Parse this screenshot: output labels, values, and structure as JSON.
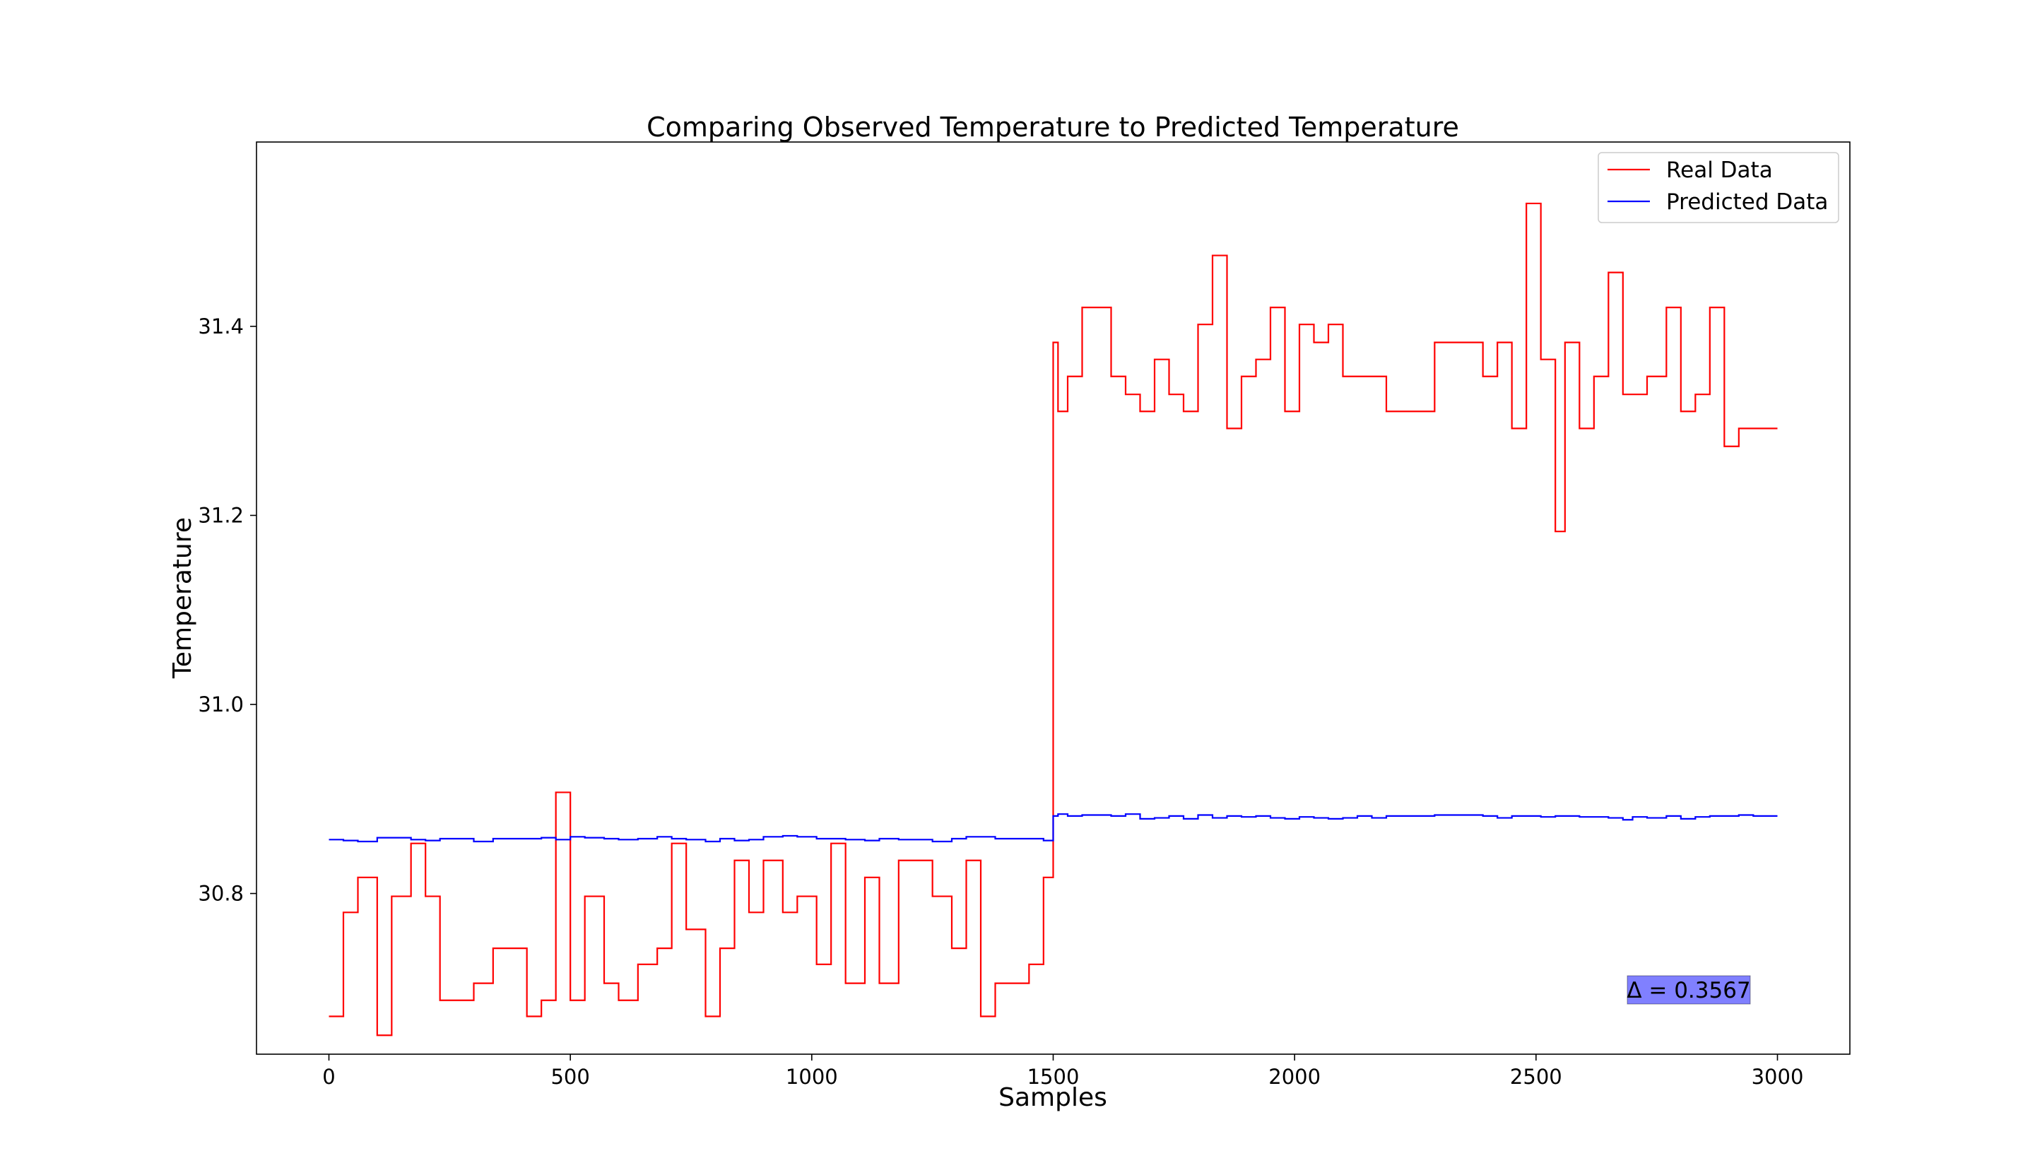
{
  "chart_data": {
    "type": "line",
    "title": "Comparing Observed Temperature to Predicted Temperature",
    "xlabel": "Samples",
    "ylabel": "Temperature",
    "xlim": [
      -150,
      3150
    ],
    "ylim": [
      30.63,
      31.595
    ],
    "xticks": [
      0,
      500,
      1000,
      1500,
      2000,
      2500,
      3000
    ],
    "xtick_labels": [
      "0",
      "500",
      "1000",
      "1500",
      "2000",
      "2500",
      "3000"
    ],
    "yticks": [
      30.8,
      31.0,
      31.2,
      31.4
    ],
    "ytick_labels": [
      "30.8",
      "31.0",
      "31.2",
      "31.4"
    ],
    "grid": false,
    "legend_position": "top-right",
    "annotation": "Δ = 0.3567",
    "annotation_color": "#8080ff",
    "series": [
      {
        "name": "Real Data",
        "color": "#ff0000",
        "step": true,
        "x": [
          0,
          30,
          60,
          100,
          130,
          170,
          200,
          230,
          300,
          340,
          410,
          440,
          470,
          500,
          530,
          570,
          600,
          640,
          680,
          710,
          740,
          780,
          810,
          840,
          870,
          900,
          940,
          970,
          1010,
          1040,
          1070,
          1110,
          1140,
          1180,
          1250,
          1290,
          1320,
          1350,
          1380,
          1450,
          1480,
          1490,
          1500,
          1505,
          1510,
          1520,
          1530,
          1560,
          1620,
          1650,
          1680,
          1710,
          1740,
          1770,
          1800,
          1830,
          1860,
          1890,
          1920,
          1950,
          1980,
          2010,
          2040,
          2070,
          2100,
          2130,
          2160,
          2190,
          2290,
          2390,
          2420,
          2450,
          2480,
          2510,
          2540,
          2560,
          2590,
          2620,
          2650,
          2680,
          2700,
          2730,
          2770,
          2800,
          2830,
          2860,
          2890,
          2920,
          2950,
          2970,
          3000
        ],
        "y": [
          30.67,
          30.78,
          30.817,
          30.65,
          30.797,
          30.853,
          30.797,
          30.687,
          30.705,
          30.742,
          30.67,
          30.687,
          30.907,
          30.687,
          30.797,
          30.705,
          30.687,
          30.725,
          30.742,
          30.853,
          30.762,
          30.67,
          30.742,
          30.835,
          30.78,
          30.835,
          30.78,
          30.797,
          30.725,
          30.853,
          30.705,
          30.817,
          30.705,
          30.835,
          30.797,
          30.742,
          30.835,
          30.67,
          30.705,
          30.725,
          30.817,
          30.817,
          31.383,
          31.383,
          31.31,
          31.31,
          31.347,
          31.42,
          31.347,
          31.328,
          31.31,
          31.365,
          31.328,
          31.31,
          31.402,
          31.475,
          31.292,
          31.347,
          31.365,
          31.42,
          31.31,
          31.402,
          31.383,
          31.402,
          31.347,
          31.347,
          31.347,
          31.31,
          31.383,
          31.347,
          31.383,
          31.292,
          31.53,
          31.365,
          31.183,
          31.383,
          31.292,
          31.347,
          31.457,
          31.328,
          31.328,
          31.347,
          31.42,
          31.31,
          31.328,
          31.42,
          31.273,
          31.292,
          31.292,
          31.292,
          31.292
        ]
      },
      {
        "name": "Predicted Data",
        "color": "#0000ff",
        "step": true,
        "x": [
          0,
          30,
          60,
          100,
          130,
          170,
          200,
          230,
          300,
          340,
          410,
          440,
          470,
          500,
          530,
          570,
          600,
          640,
          680,
          710,
          740,
          780,
          810,
          840,
          870,
          900,
          940,
          970,
          1010,
          1040,
          1070,
          1110,
          1140,
          1180,
          1250,
          1290,
          1320,
          1350,
          1380,
          1450,
          1480,
          1490,
          1500,
          1505,
          1510,
          1520,
          1530,
          1560,
          1620,
          1650,
          1680,
          1710,
          1740,
          1770,
          1800,
          1830,
          1860,
          1890,
          1920,
          1950,
          1980,
          2010,
          2040,
          2070,
          2100,
          2130,
          2160,
          2190,
          2290,
          2390,
          2420,
          2450,
          2480,
          2510,
          2540,
          2560,
          2590,
          2620,
          2650,
          2680,
          2700,
          2730,
          2770,
          2800,
          2830,
          2860,
          2890,
          2920,
          2950,
          2970,
          3000
        ],
        "y": [
          30.857,
          30.856,
          30.855,
          30.859,
          30.859,
          30.857,
          30.856,
          30.858,
          30.855,
          30.858,
          30.858,
          30.859,
          30.857,
          30.86,
          30.859,
          30.858,
          30.857,
          30.858,
          30.86,
          30.858,
          30.857,
          30.855,
          30.858,
          30.856,
          30.857,
          30.86,
          30.861,
          30.86,
          30.858,
          30.858,
          30.857,
          30.856,
          30.858,
          30.857,
          30.855,
          30.858,
          30.86,
          30.86,
          30.858,
          30.858,
          30.856,
          30.856,
          30.882,
          30.882,
          30.884,
          30.884,
          30.882,
          30.883,
          30.882,
          30.884,
          30.879,
          30.88,
          30.882,
          30.879,
          30.883,
          30.88,
          30.882,
          30.881,
          30.882,
          30.88,
          30.879,
          30.881,
          30.88,
          30.879,
          30.88,
          30.882,
          30.88,
          30.882,
          30.883,
          30.882,
          30.88,
          30.882,
          30.882,
          30.881,
          30.882,
          30.882,
          30.881,
          30.881,
          30.88,
          30.878,
          30.881,
          30.88,
          30.882,
          30.879,
          30.881,
          30.882,
          30.882,
          30.883,
          30.882,
          30.882,
          30.882
        ]
      }
    ]
  }
}
